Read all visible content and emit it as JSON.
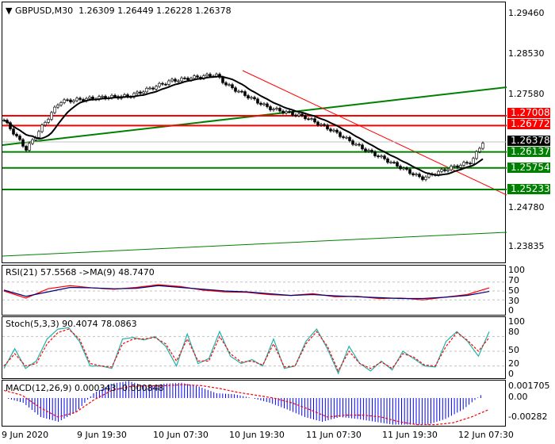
{
  "header": {
    "symbol": "GBPUSD,M30",
    "ohlc": "1.26309 1.26449 1.26228 1.26378"
  },
  "price_axis": [
    "1.29460",
    "1.28530",
    "1.27580",
    "1.24780",
    "1.23835"
  ],
  "levels": [
    {
      "label": "1.27008",
      "price": 1.27008,
      "color": "#ff0000"
    },
    {
      "label": "1.26772",
      "price": 1.26772,
      "color": "#ff0000"
    },
    {
      "label": "1.26378",
      "price": 1.26378,
      "color": "#000000",
      "current": true
    },
    {
      "label": "1.26137",
      "price": 1.26137,
      "color": "#008000"
    },
    {
      "label": "1.25754",
      "price": 1.25754,
      "color": "#008000"
    },
    {
      "label": "1.25233",
      "price": 1.25233,
      "color": "#008000"
    }
  ],
  "price_path": [
    [
      0,
      1.269
    ],
    [
      8,
      1.262
    ],
    [
      20,
      1.2735
    ],
    [
      35,
      1.2745
    ],
    [
      45,
      1.2748
    ],
    [
      60,
      1.2785
    ],
    [
      76,
      1.28
    ],
    [
      80,
      1.2775
    ],
    [
      95,
      1.272
    ],
    [
      108,
      1.2698
    ],
    [
      118,
      1.2665
    ],
    [
      128,
      1.2625
    ],
    [
      138,
      1.2592
    ],
    [
      150,
      1.255
    ],
    [
      160,
      1.2575
    ],
    [
      168,
      1.259
    ],
    [
      172,
      1.2638
    ]
  ],
  "rsi": {
    "label": "RSI(21) 57.5568  ->MA(9) 48.7470",
    "axis": [
      "100",
      "70",
      "50",
      "30",
      "0"
    ],
    "values": [
      50,
      34,
      55,
      62,
      57,
      54,
      58,
      64,
      60,
      52,
      48,
      47,
      42,
      40,
      44,
      37,
      38,
      33,
      34,
      30,
      36,
      42,
      57
    ],
    "ma": [
      52,
      38,
      48,
      58,
      57,
      55,
      56,
      62,
      58,
      54,
      50,
      48,
      44,
      40,
      42,
      39,
      37,
      35,
      33,
      33,
      36,
      40,
      49
    ]
  },
  "stoch": {
    "label": "Stoch(5,3,3) 90.4074 78.0863",
    "axis": [
      "100",
      "80",
      "50",
      "20",
      "0"
    ],
    "main": [
      15,
      55,
      15,
      30,
      75,
      95,
      98,
      70,
      20,
      20,
      15,
      75,
      78,
      73,
      80,
      60,
      20,
      85,
      25,
      35,
      90,
      40,
      25,
      33,
      20,
      75,
      15,
      20,
      70,
      95,
      55,
      5,
      60,
      25,
      10,
      30,
      12,
      50,
      35,
      20,
      18,
      70,
      90,
      70,
      40,
      90
    ],
    "signal": [
      20,
      45,
      20,
      25,
      65,
      88,
      95,
      75,
      25,
      20,
      18,
      65,
      75,
      75,
      78,
      65,
      30,
      75,
      30,
      30,
      80,
      45,
      28,
      30,
      22,
      65,
      18,
      20,
      65,
      90,
      60,
      10,
      50,
      25,
      15,
      28,
      15,
      45,
      38,
      22,
      20,
      60,
      88,
      72,
      50,
      78
    ]
  },
  "macd": {
    "label": "MACD(12,26,9) 0.000343 -0.000848",
    "axis": [
      "0.001705",
      "0.00",
      "-0.00282"
    ],
    "hist": [
      0,
      -0.0005,
      -0.002,
      -0.0025,
      -0.0015,
      0.0005,
      0.0015,
      0.0018,
      0.0012,
      0.0015,
      0.0016,
      0.0012,
      0.0005,
      0.0004,
      0,
      -0.0005,
      -0.0012,
      -0.002,
      -0.0025,
      -0.002,
      -0.0022,
      -0.0025,
      -0.0028,
      -0.0028,
      -0.0028,
      -0.0022,
      -0.0012,
      0.0003
    ],
    "signal": [
      0.0008,
      0.0003,
      -0.001,
      -0.002,
      -0.0015,
      -0.0002,
      0.0008,
      0.0012,
      0.0013,
      0.0013,
      0.0014,
      0.0013,
      0.001,
      0.0006,
      0.0003,
      0,
      -0.0005,
      -0.0012,
      -0.002,
      -0.0018,
      -0.0018,
      -0.002,
      -0.0025,
      -0.0028,
      -0.0028,
      -0.0026,
      -0.002,
      -0.0012
    ]
  },
  "time_axis": [
    "9 Jun 2020",
    "9 Jun 19:30",
    "10 Jun 07:30",
    "10 Jun 19:30",
    "11 Jun 07:30",
    "11 Jun 19:30",
    "12 Jun 07:30"
  ]
}
